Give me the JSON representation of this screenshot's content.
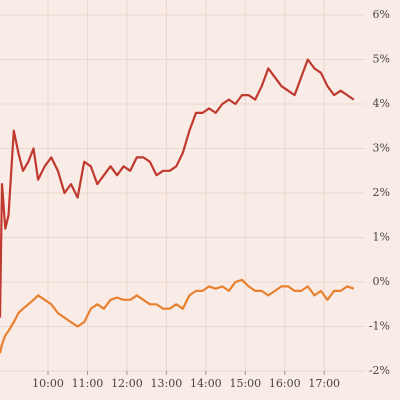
{
  "chart_data": {
    "type": "line",
    "x": [
      "08:47",
      "08:50",
      "08:55",
      "09:00",
      "09:08",
      "09:15",
      "09:22",
      "09:30",
      "09:38",
      "09:45",
      "09:55",
      "10:05",
      "10:15",
      "10:25",
      "10:35",
      "10:45",
      "10:55",
      "11:05",
      "11:15",
      "11:25",
      "11:35",
      "11:45",
      "11:55",
      "12:05",
      "12:15",
      "12:25",
      "12:35",
      "12:45",
      "12:55",
      "13:05",
      "13:15",
      "13:25",
      "13:35",
      "13:45",
      "13:55",
      "14:05",
      "14:15",
      "14:25",
      "14:35",
      "14:45",
      "14:55",
      "15:05",
      "15:15",
      "15:25",
      "15:35",
      "15:45",
      "15:55",
      "16:05",
      "16:15",
      "16:25",
      "16:35",
      "16:45",
      "16:55",
      "17:05",
      "17:15",
      "17:25",
      "17:35",
      "17:45"
    ],
    "series": [
      {
        "color": "#c0392e",
        "values": [
          -0.8,
          2.2,
          1.2,
          1.5,
          3.4,
          2.9,
          2.5,
          2.7,
          3.0,
          2.3,
          2.6,
          2.8,
          2.5,
          2.0,
          2.2,
          1.9,
          2.7,
          2.6,
          2.2,
          2.4,
          2.6,
          2.4,
          2.6,
          2.5,
          2.8,
          2.8,
          2.7,
          2.4,
          2.5,
          2.5,
          2.6,
          2.9,
          3.4,
          3.8,
          3.8,
          3.9,
          3.8,
          4.0,
          4.1,
          4.0,
          4.2,
          4.2,
          4.1,
          4.4,
          4.8,
          4.6,
          4.4,
          4.3,
          4.2,
          4.6,
          5.0,
          4.8,
          4.7,
          4.4,
          4.2,
          4.3,
          4.2,
          4.1
        ]
      },
      {
        "color": "#e8812f",
        "values": [
          -1.6,
          -1.4,
          -1.2,
          -1.1,
          -0.9,
          -0.7,
          -0.6,
          -0.5,
          -0.4,
          -0.3,
          -0.4,
          -0.5,
          -0.7,
          -0.8,
          -0.9,
          -1.0,
          -0.9,
          -0.6,
          -0.5,
          -0.6,
          -0.4,
          -0.35,
          -0.4,
          -0.4,
          -0.3,
          -0.4,
          -0.5,
          -0.5,
          -0.6,
          -0.6,
          -0.5,
          -0.6,
          -0.3,
          -0.2,
          -0.2,
          -0.1,
          -0.15,
          -0.1,
          -0.2,
          0.0,
          0.05,
          -0.1,
          -0.2,
          -0.2,
          -0.3,
          -0.2,
          -0.1,
          -0.1,
          -0.2,
          -0.2,
          -0.1,
          -0.3,
          -0.2,
          -0.4,
          -0.2,
          -0.2,
          -0.1,
          -0.15
        ]
      }
    ],
    "xlim": [
      "08:47",
      "18:02"
    ],
    "xticks": [
      "10:00",
      "11:00",
      "12:00",
      "13:00",
      "14:00",
      "15:00",
      "16:00",
      "17:00"
    ],
    "ylim": [
      -2,
      6
    ],
    "yticks": [
      {
        "value": -2,
        "label": "-2%"
      },
      {
        "value": -1,
        "label": "-1%"
      },
      {
        "value": 0,
        "label": "0%"
      },
      {
        "value": 1,
        "label": "1%"
      },
      {
        "value": 2,
        "label": "2%"
      },
      {
        "value": 3,
        "label": "3%"
      },
      {
        "value": 4,
        "label": "4%"
      },
      {
        "value": 5,
        "label": "5%"
      },
      {
        "value": 6,
        "label": "6%"
      }
    ],
    "grid": true
  }
}
